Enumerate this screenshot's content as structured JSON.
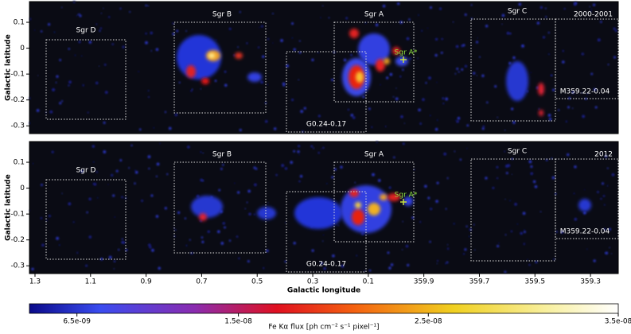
{
  "chart_data": [
    {
      "type": "image",
      "label": "2000-2001",
      "ylabel": "Galactic latitude",
      "xlim": [
        1.32,
        -0.8
      ],
      "ylim": [
        -0.33,
        0.18
      ],
      "yticks": [
        0.1,
        0,
        -0.1,
        -0.2,
        -0.3
      ],
      "regions": [
        "Sgr D",
        "Sgr B",
        "G0.24-0.17",
        "Sgr A",
        "Sgr C",
        "M359.22-0.04"
      ],
      "marker": "Sgr A*"
    },
    {
      "type": "image",
      "label": "2012",
      "ylabel": "Galactic latitude",
      "xlabel": "Galactic longitude",
      "xlim": [
        1.32,
        -0.8
      ],
      "ylim": [
        -0.33,
        0.18
      ],
      "yticks": [
        0.1,
        0,
        -0.1,
        -0.2,
        -0.3
      ],
      "xticks": [
        1.3,
        1.1,
        0.9,
        0.7,
        0.5,
        0.3,
        0.1,
        {
          "value": -0.1,
          "label": "359.9"
        },
        {
          "value": -0.3,
          "label": "359.7"
        },
        {
          "value": -0.5,
          "label": "359.5"
        },
        {
          "value": -0.7,
          "label": "359.3"
        }
      ],
      "regions": [
        "Sgr D",
        "Sgr B",
        "G0.24-0.17",
        "Sgr A",
        "Sgr C",
        "M359.22-0.04"
      ],
      "marker": "Sgr A*"
    }
  ],
  "colorbar": {
    "label": "Fe Kα flux [ph cm⁻² s⁻¹ pixel⁻¹]",
    "lim": [
      4e-09,
      3.5e-08
    ],
    "ticks": [
      {
        "value": 6.5e-09,
        "label": "6.5e-09"
      },
      {
        "value": 1.5e-08,
        "label": "1.5e-08"
      },
      {
        "value": 2.5e-08,
        "label": "2.5e-08"
      },
      {
        "value": 3.5e-08,
        "label": "3.5e-08"
      }
    ]
  }
}
